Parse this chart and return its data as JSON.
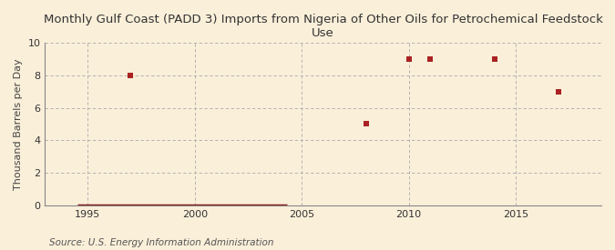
{
  "title": "Monthly Gulf Coast (PADD 3) Imports from Nigeria of Other Oils for Petrochemical Feedstock\nUse",
  "ylabel": "Thousand Barrels per Day",
  "source": "Source: U.S. Energy Information Administration",
  "background_color": "#faefd9",
  "plot_bg_color": "#faefd9",
  "grid_color": "#aaaaaa",
  "marker_color": "#aa2222",
  "line_color": "#8b1a1a",
  "scatter_x": [
    1997,
    2008,
    2010,
    2011,
    2014,
    2017
  ],
  "scatter_y": [
    8,
    5,
    9,
    9,
    9,
    7
  ],
  "zero_line_x_start": 1994.5,
  "zero_line_x_end": 2004.3,
  "xlim": [
    1993,
    2019
  ],
  "ylim": [
    0,
    10
  ],
  "xticks": [
    1995,
    2000,
    2005,
    2010,
    2015
  ],
  "yticks": [
    0,
    2,
    4,
    6,
    8,
    10
  ],
  "title_fontsize": 9.5,
  "label_fontsize": 8,
  "tick_fontsize": 8,
  "source_fontsize": 7.5,
  "marker_size": 5
}
